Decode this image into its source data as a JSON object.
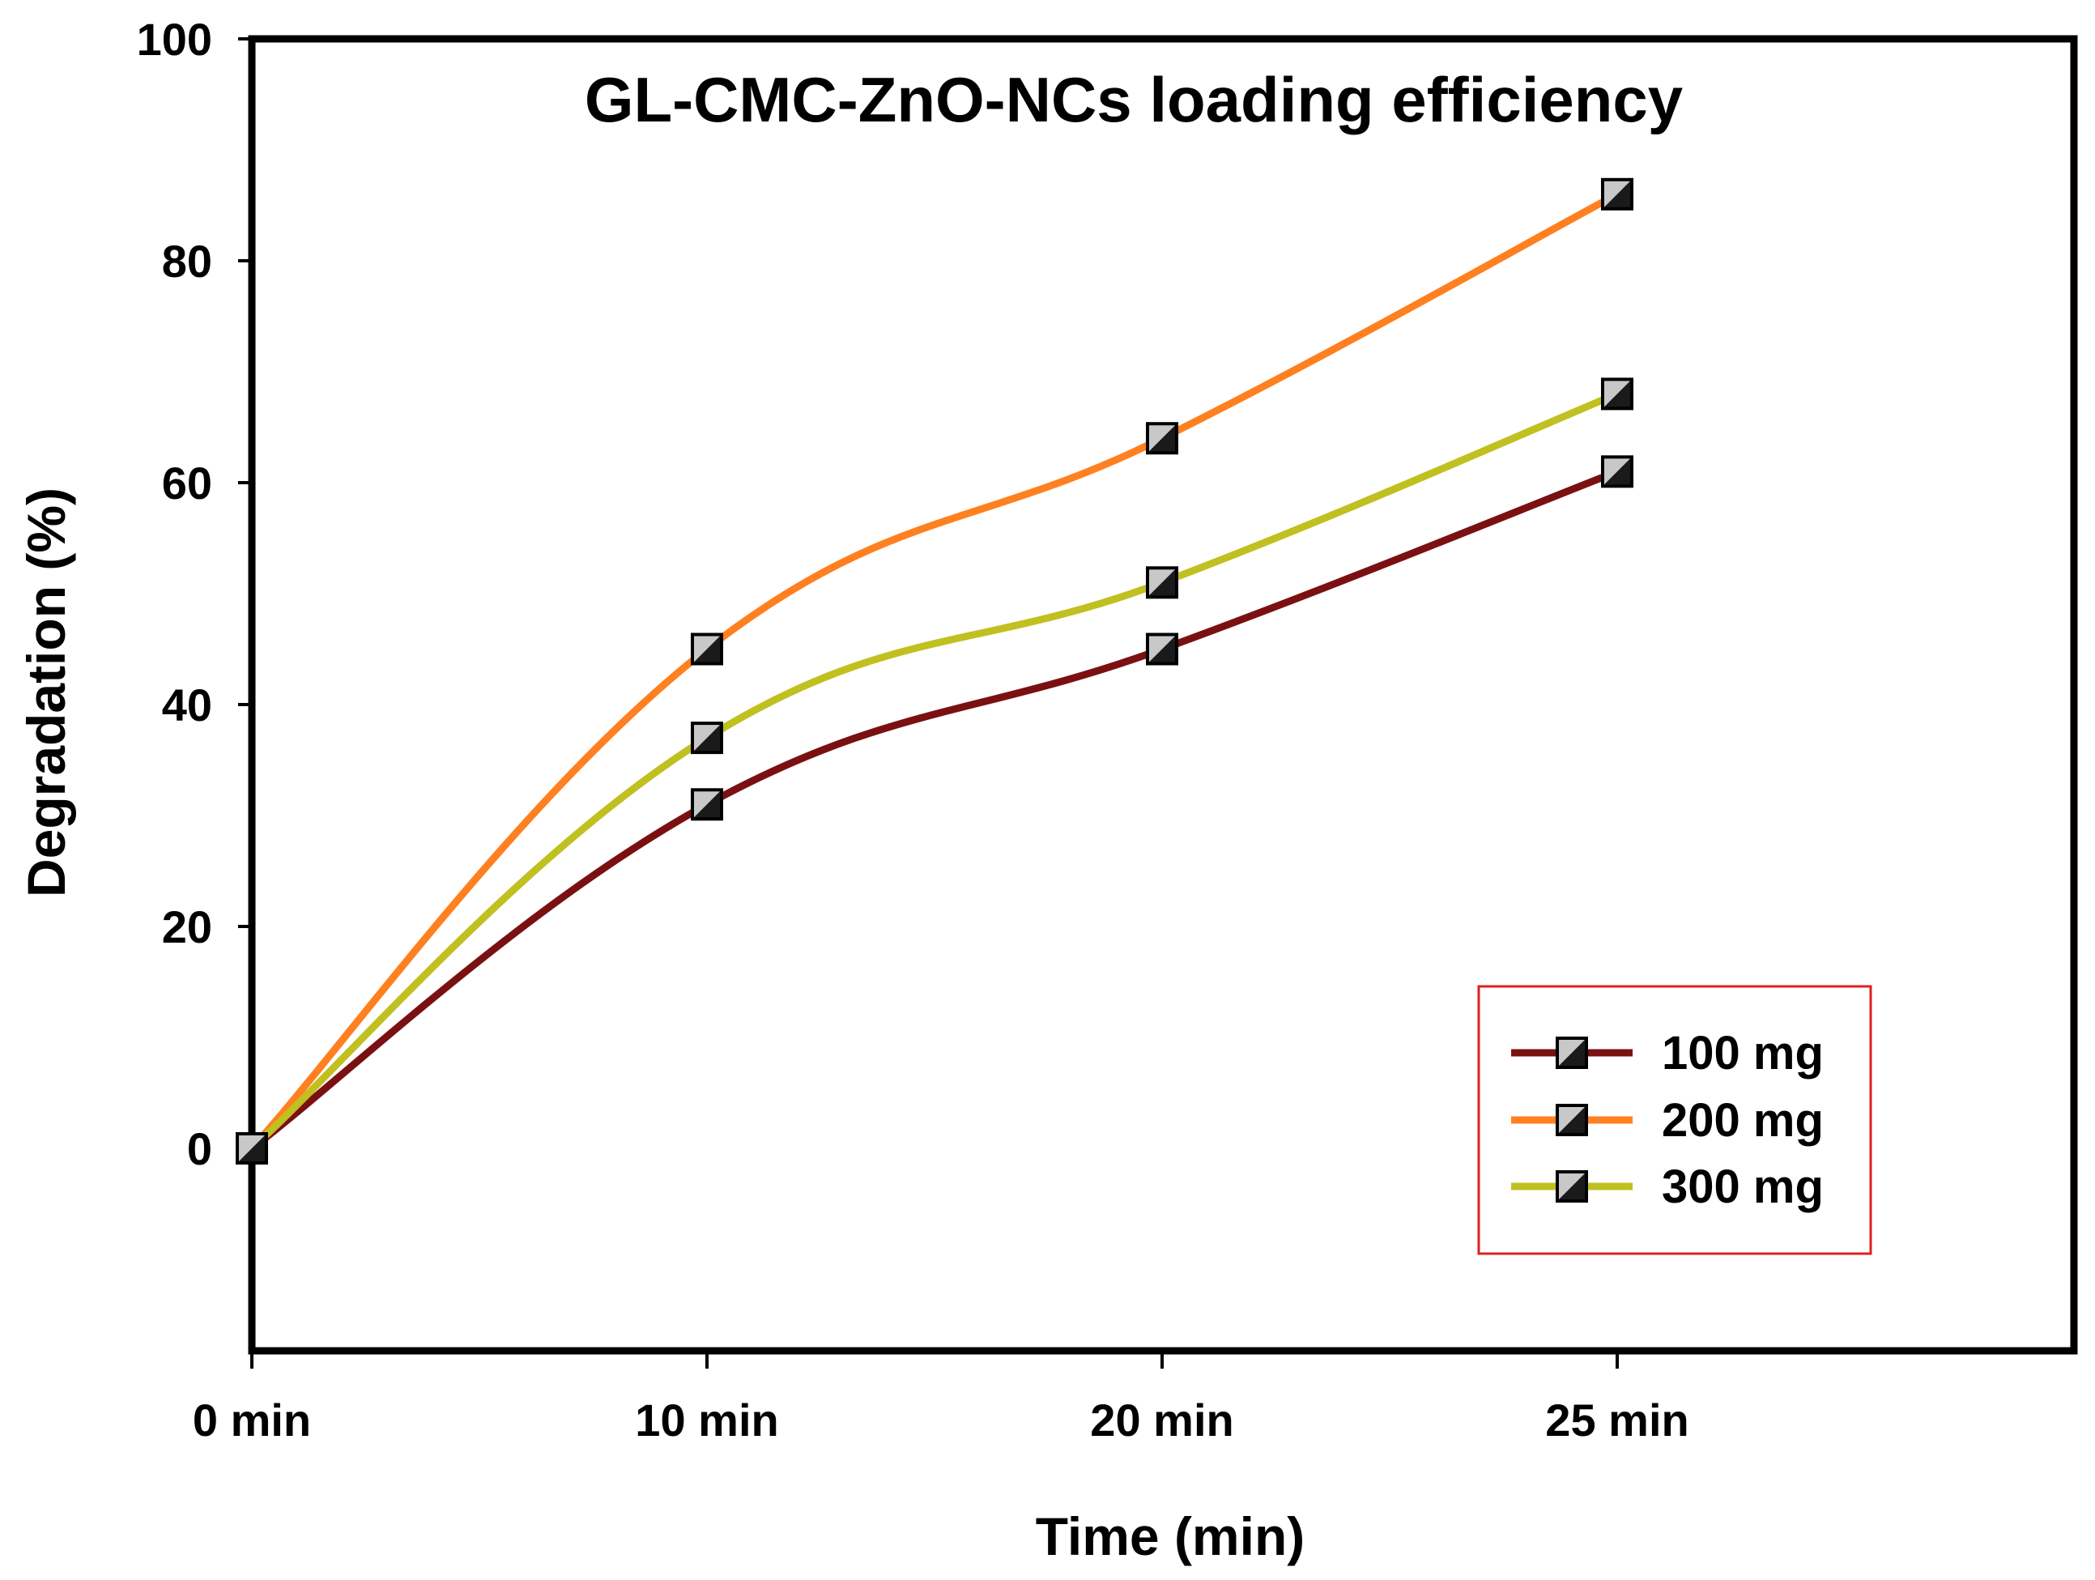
{
  "chart_data": {
    "type": "line",
    "title": "GL-CMC-ZnO-NCs loading efficiency",
    "xlabel": "Time (min)",
    "ylabel": "Degradation (%)",
    "categories": [
      "0 min",
      "10 min",
      "20 min",
      "25 min"
    ],
    "x_ticks": [
      "0 min",
      "10 min",
      "20 min",
      "25 min"
    ],
    "y_ticks": [
      "0",
      "20",
      "40",
      "60",
      "80",
      "100"
    ],
    "ylim": [
      -18,
      100
    ],
    "grid": false,
    "legend_position": "bottom-right",
    "series": [
      {
        "name": "100 mg",
        "values": [
          0,
          31,
          45,
          61
        ],
        "color": "#7b1012"
      },
      {
        "name": "200 mg",
        "values": [
          0,
          45,
          64,
          86
        ],
        "color": "#ff8020"
      },
      {
        "name": "300 mg",
        "values": [
          0,
          37,
          51,
          68
        ],
        "color": "#c0c020"
      }
    ],
    "marker": "half-filled-square-icon",
    "legend_border_color": "#e02020"
  }
}
